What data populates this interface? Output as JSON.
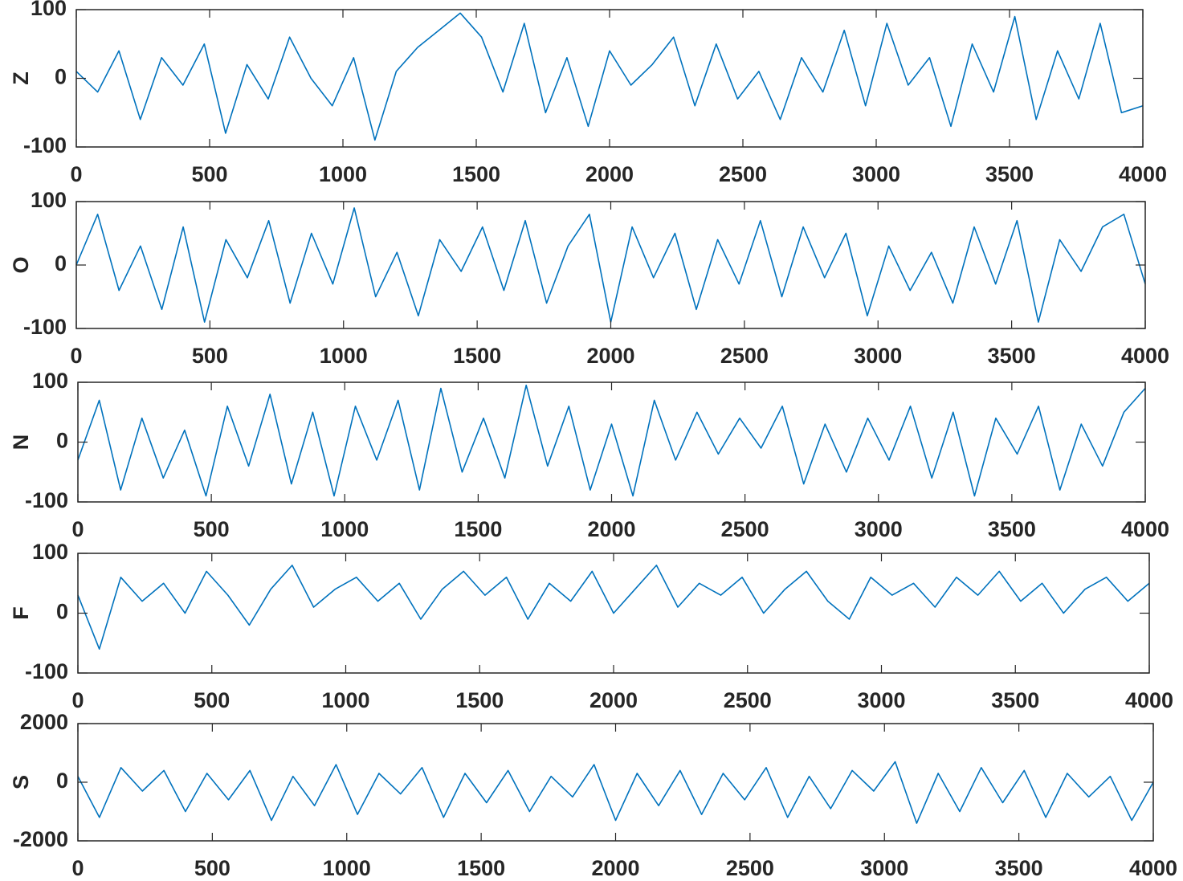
{
  "chart_data": [
    {
      "type": "line",
      "ylabel": "Z",
      "color": "#0072bd",
      "xlim": [
        0,
        4000
      ],
      "ylim": [
        -100,
        100
      ],
      "xticks": [
        0,
        500,
        1000,
        1500,
        2000,
        2500,
        3000,
        3500,
        4000
      ],
      "yticks": [
        -100,
        0,
        100
      ],
      "x": [
        0,
        80,
        160,
        240,
        320,
        400,
        480,
        560,
        640,
        720,
        800,
        880,
        960,
        1040,
        1120,
        1200,
        1280,
        1360,
        1440,
        1520,
        1600,
        1680,
        1760,
        1840,
        1920,
        2000,
        2080,
        2160,
        2240,
        2320,
        2400,
        2480,
        2560,
        2640,
        2720,
        2800,
        2880,
        2960,
        3040,
        3120,
        3200,
        3280,
        3360,
        3440,
        3520,
        3600,
        3680,
        3760,
        3840,
        3920,
        4000
      ],
      "values": [
        10,
        -20,
        40,
        -60,
        30,
        -10,
        50,
        -80,
        20,
        -30,
        60,
        0,
        -40,
        30,
        -90,
        10,
        45,
        70,
        95,
        60,
        -20,
        80,
        -50,
        30,
        -70,
        40,
        -10,
        20,
        60,
        -40,
        50,
        -30,
        10,
        -60,
        30,
        -20,
        70,
        -40,
        80,
        -10,
        30,
        -70,
        50,
        -20,
        90,
        -60,
        40,
        -30,
        80,
        -50,
        -40
      ]
    },
    {
      "type": "line",
      "ylabel": "O",
      "color": "#0072bd",
      "xlim": [
        0,
        4000
      ],
      "ylim": [
        -100,
        100
      ],
      "xticks": [
        0,
        500,
        1000,
        1500,
        2000,
        2500,
        3000,
        3500,
        4000
      ],
      "yticks": [
        -100,
        0,
        100
      ],
      "x": [
        0,
        80,
        160,
        240,
        320,
        400,
        480,
        560,
        640,
        720,
        800,
        880,
        960,
        1040,
        1120,
        1200,
        1280,
        1360,
        1440,
        1520,
        1600,
        1680,
        1760,
        1840,
        1920,
        2000,
        2080,
        2160,
        2240,
        2320,
        2400,
        2480,
        2560,
        2640,
        2720,
        2800,
        2880,
        2960,
        3040,
        3120,
        3200,
        3280,
        3360,
        3440,
        3520,
        3600,
        3680,
        3760,
        3840,
        3920,
        4000
      ],
      "values": [
        0,
        80,
        -40,
        30,
        -70,
        60,
        -90,
        40,
        -20,
        70,
        -60,
        50,
        -30,
        90,
        -50,
        20,
        -80,
        40,
        -10,
        60,
        -40,
        70,
        -60,
        30,
        80,
        -90,
        60,
        -20,
        50,
        -70,
        40,
        -30,
        70,
        -50,
        60,
        -20,
        50,
        -80,
        30,
        -40,
        20,
        -60,
        60,
        -30,
        70,
        -90,
        40,
        -10,
        60,
        80,
        -30
      ]
    },
    {
      "type": "line",
      "ylabel": "N",
      "color": "#0072bd",
      "xlim": [
        0,
        4000
      ],
      "ylim": [
        -100,
        100
      ],
      "xticks": [
        0,
        500,
        1000,
        1500,
        2000,
        2500,
        3000,
        3500,
        4000
      ],
      "yticks": [
        -100,
        0,
        100
      ],
      "x": [
        0,
        80,
        160,
        240,
        320,
        400,
        480,
        560,
        640,
        720,
        800,
        880,
        960,
        1040,
        1120,
        1200,
        1280,
        1360,
        1440,
        1520,
        1600,
        1680,
        1760,
        1840,
        1920,
        2000,
        2080,
        2160,
        2240,
        2320,
        2400,
        2480,
        2560,
        2640,
        2720,
        2800,
        2880,
        2960,
        3040,
        3120,
        3200,
        3280,
        3360,
        3440,
        3520,
        3600,
        3680,
        3760,
        3840,
        3920,
        4000
      ],
      "values": [
        -30,
        70,
        -80,
        40,
        -60,
        20,
        -90,
        60,
        -40,
        80,
        -70,
        50,
        -90,
        60,
        -30,
        70,
        -80,
        90,
        -50,
        40,
        -60,
        95,
        -40,
        60,
        -80,
        30,
        -90,
        70,
        -30,
        50,
        -20,
        40,
        -10,
        60,
        -70,
        30,
        -50,
        40,
        -30,
        60,
        -60,
        50,
        -90,
        40,
        -20,
        60,
        -80,
        30,
        -40,
        50,
        90
      ]
    },
    {
      "type": "line",
      "ylabel": "F",
      "color": "#0072bd",
      "xlim": [
        0,
        4000
      ],
      "ylim": [
        -100,
        100
      ],
      "xticks": [
        0,
        500,
        1000,
        1500,
        2000,
        2500,
        3000,
        3500,
        4000
      ],
      "yticks": [
        -100,
        0,
        100
      ],
      "x": [
        0,
        80,
        160,
        240,
        320,
        400,
        480,
        560,
        640,
        720,
        800,
        880,
        960,
        1040,
        1120,
        1200,
        1280,
        1360,
        1440,
        1520,
        1600,
        1680,
        1760,
        1840,
        1920,
        2000,
        2080,
        2160,
        2240,
        2320,
        2400,
        2480,
        2560,
        2640,
        2720,
        2800,
        2880,
        2960,
        3040,
        3120,
        3200,
        3280,
        3360,
        3440,
        3520,
        3600,
        3680,
        3760,
        3840,
        3920,
        4000
      ],
      "values": [
        30,
        -60,
        60,
        20,
        50,
        0,
        70,
        30,
        -20,
        40,
        80,
        10,
        40,
        60,
        20,
        50,
        -10,
        40,
        70,
        30,
        60,
        -10,
        50,
        20,
        70,
        0,
        40,
        80,
        10,
        50,
        30,
        60,
        0,
        40,
        70,
        20,
        -10,
        60,
        30,
        50,
        10,
        60,
        30,
        70,
        20,
        50,
        0,
        40,
        60,
        20,
        50
      ]
    },
    {
      "type": "line",
      "ylabel": "S",
      "color": "#0072bd",
      "xlim": [
        0,
        4000
      ],
      "ylim": [
        -2000,
        2000
      ],
      "xticks": [
        0,
        500,
        1000,
        1500,
        2000,
        2500,
        3000,
        3500,
        4000
      ],
      "yticks": [
        -2000,
        0,
        2000
      ],
      "x": [
        0,
        80,
        160,
        240,
        320,
        400,
        480,
        560,
        640,
        720,
        800,
        880,
        960,
        1040,
        1120,
        1200,
        1280,
        1360,
        1440,
        1520,
        1600,
        1680,
        1760,
        1840,
        1920,
        2000,
        2080,
        2160,
        2240,
        2320,
        2400,
        2480,
        2560,
        2640,
        2720,
        2800,
        2880,
        2960,
        3040,
        3120,
        3200,
        3280,
        3360,
        3440,
        3520,
        3600,
        3680,
        3760,
        3840,
        3920,
        4000
      ],
      "values": [
        200,
        -1200,
        500,
        -300,
        400,
        -1000,
        300,
        -600,
        400,
        -1300,
        200,
        -800,
        600,
        -1100,
        300,
        -400,
        500,
        -1200,
        300,
        -700,
        400,
        -1000,
        200,
        -500,
        600,
        -1300,
        300,
        -800,
        400,
        -1100,
        300,
        -600,
        500,
        -1200,
        200,
        -900,
        400,
        -300,
        700,
        -1400,
        300,
        -1000,
        500,
        -700,
        400,
        -1200,
        300,
        -500,
        200,
        -1300,
        0
      ]
    }
  ]
}
